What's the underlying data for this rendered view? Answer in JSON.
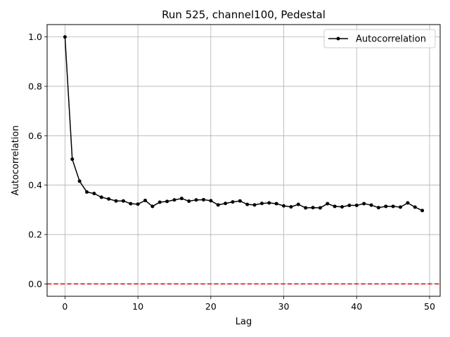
{
  "chart_data": {
    "type": "line",
    "title": "Run 525, channel100, Pedestal",
    "xlabel": "Lag",
    "ylabel": "Autocorrelation",
    "xlim": [
      -2.45,
      51.45
    ],
    "ylim": [
      -0.05,
      1.05
    ],
    "xticks": [
      0,
      10,
      20,
      30,
      40,
      50
    ],
    "yticks": [
      0.0,
      0.2,
      0.4,
      0.6,
      0.8,
      1.0
    ],
    "xtick_labels": [
      "0",
      "10",
      "20",
      "30",
      "40",
      "50"
    ],
    "ytick_labels": [
      "0.0",
      "0.2",
      "0.4",
      "0.6",
      "0.8",
      "1.0"
    ],
    "grid": true,
    "legend_position": "top-right",
    "series": [
      {
        "name": "Autocorrelation",
        "color": "#000000",
        "marker": "circle",
        "x": [
          0,
          1,
          2,
          3,
          4,
          5,
          6,
          7,
          8,
          9,
          10,
          11,
          12,
          13,
          14,
          15,
          16,
          17,
          18,
          19,
          20,
          21,
          22,
          23,
          24,
          25,
          26,
          27,
          28,
          29,
          30,
          31,
          32,
          33,
          34,
          35,
          36,
          37,
          38,
          39,
          40,
          41,
          42,
          43,
          44,
          45,
          46,
          47,
          48,
          49
        ],
        "values": [
          1.0,
          0.505,
          0.416,
          0.372,
          0.366,
          0.351,
          0.344,
          0.336,
          0.336,
          0.325,
          0.323,
          0.338,
          0.314,
          0.331,
          0.334,
          0.34,
          0.346,
          0.335,
          0.34,
          0.341,
          0.337,
          0.32,
          0.326,
          0.332,
          0.336,
          0.322,
          0.32,
          0.326,
          0.328,
          0.325,
          0.316,
          0.312,
          0.322,
          0.308,
          0.309,
          0.308,
          0.325,
          0.314,
          0.312,
          0.318,
          0.318,
          0.325,
          0.319,
          0.309,
          0.314,
          0.314,
          0.311,
          0.328,
          0.311,
          0.297
        ]
      }
    ],
    "reference_line": {
      "y": 0.0,
      "color": "#e00000",
      "style": "dashed"
    }
  }
}
